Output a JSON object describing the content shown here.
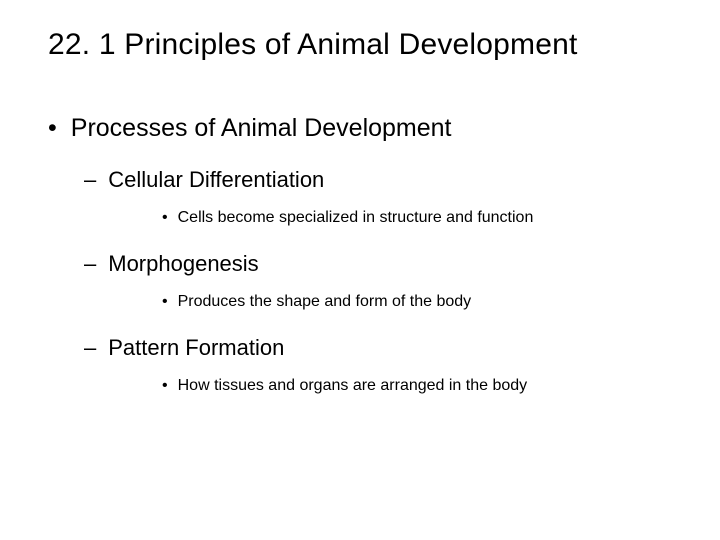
{
  "title": "22. 1  Principles of Animal Development",
  "bullets": {
    "l1_bullet": "•",
    "l2_bullet": "–",
    "l3_bullet": "•"
  },
  "outline": {
    "item1": {
      "text": "Processes of Animal Development",
      "sub1": {
        "text": "Cellular Differentiation",
        "detail": "Cells become specialized in structure and function"
      },
      "sub2": {
        "text": "Morphogenesis",
        "detail": "Produces the shape and form of the body"
      },
      "sub3": {
        "text": "Pattern Formation",
        "detail": "How tissues and organs are arranged in the body"
      }
    }
  },
  "styling": {
    "background_color": "#ffffff",
    "text_color": "#000000",
    "title_fontsize": 30,
    "l1_fontsize": 25,
    "l2_fontsize": 22,
    "l3_fontsize": 16,
    "font_family": "Arial"
  }
}
